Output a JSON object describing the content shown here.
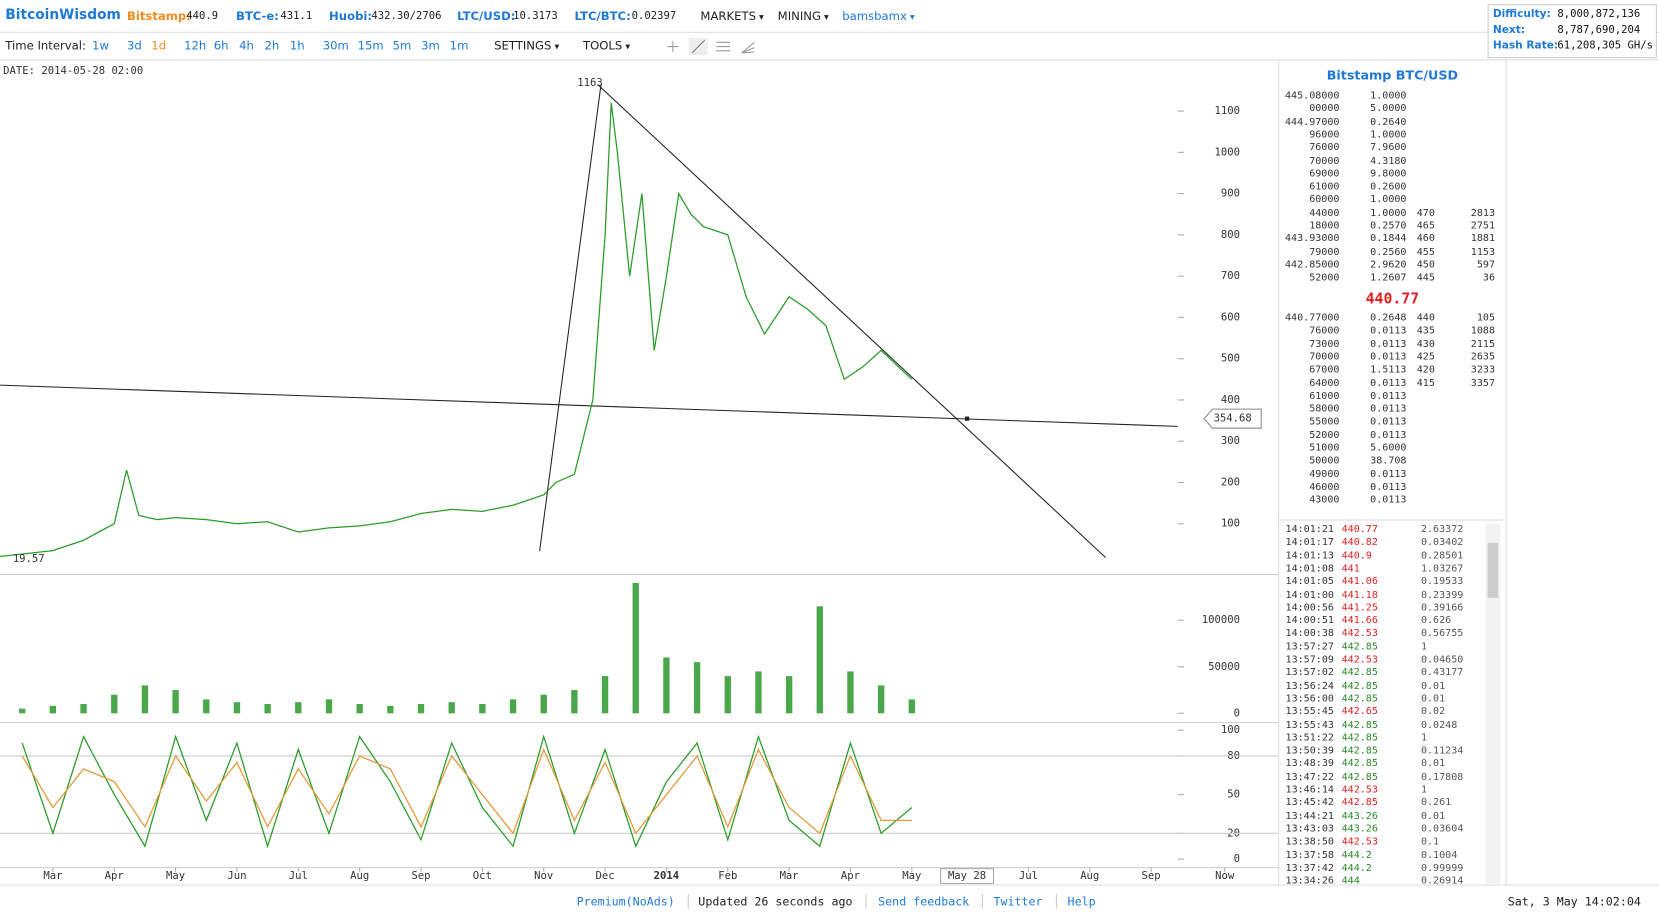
{
  "header": {
    "logo": "BitcoinWisdom",
    "tickers": [
      {
        "label": "Bitstamp:",
        "value": "440.9"
      },
      {
        "label": "BTC-e:",
        "value": "431.1"
      },
      {
        "label": "Huobi:",
        "value": "432.30/2706"
      },
      {
        "label": "LTC/USD:",
        "value": "10.3173"
      },
      {
        "label": "LTC/BTC:",
        "value": "0.02397"
      }
    ],
    "menus": [
      "MARKETS",
      "MINING",
      "bamsbamx"
    ]
  },
  "stats": [
    {
      "label": "Difficulty:",
      "value": "8,000,872,136"
    },
    {
      "label": "Next:",
      "value": "8,787,690,204"
    },
    {
      "label": "Hash Rate:",
      "value": "61,208,305 GH/s"
    }
  ],
  "toolbar": {
    "label": "Time Interval:",
    "intervals": [
      "1w",
      "3d",
      "1d",
      "12h",
      "6h",
      "4h",
      "2h",
      "1h",
      "30m",
      "15m",
      "5m",
      "3m",
      "1m"
    ],
    "selected_index": 2,
    "menus": [
      "SETTINGS",
      "TOOLS"
    ]
  },
  "chart_data": [
    {
      "type": "line",
      "date_label": "DATE: 2014-05-28 02:00",
      "xlim": [
        -0.862,
        19.97
      ],
      "ylim": [
        -23,
        1223
      ],
      "yticks": [
        100,
        200,
        300,
        400,
        500,
        600,
        700,
        800,
        900,
        1000,
        1100
      ],
      "x": [
        -0.9,
        0,
        0.5,
        1,
        1.2,
        1.4,
        1.7,
        2,
        2.5,
        3,
        3.5,
        4,
        4.5,
        5,
        5.5,
        6,
        6.5,
        7,
        7.5,
        8,
        8.2,
        8.5,
        8.8,
        9,
        9.1,
        9.2,
        9.4,
        9.6,
        9.8,
        10,
        10.2,
        10.4,
        10.6,
        11,
        11.3,
        11.6,
        12,
        12.3,
        12.6,
        12.9,
        13.2,
        13.5,
        14
      ],
      "series": [
        {
          "color": "#2a9d2a",
          "values": [
            20,
            35,
            60,
            100,
            230,
            120,
            110,
            115,
            110,
            100,
            105,
            80,
            90,
            95,
            105,
            125,
            135,
            130,
            145,
            170,
            200,
            220,
            400,
            800,
            1120,
            1000,
            700,
            900,
            520,
            700,
            900,
            850,
            820,
            800,
            650,
            560,
            650,
            620,
            580,
            450,
            480,
            520,
            450
          ]
        }
      ],
      "annotations": [
        {
          "label": "1163",
          "x": 9.1,
          "y": 1163
        },
        {
          "label": "19.57",
          "x": -0.86,
          "y": 19.57
        }
      ],
      "cursor": {
        "label": "354.68",
        "x": 14.9,
        "y": 354.68
      }
    },
    {
      "type": "bar",
      "xlim": [
        -0.862,
        19.97
      ],
      "ylim": [
        -10000,
        148000
      ],
      "yticks": [
        0,
        50000,
        100000
      ],
      "color": "#4aa84a",
      "x": [
        -0.5,
        0,
        0.5,
        1,
        1.5,
        2,
        2.5,
        3,
        3.5,
        4,
        4.5,
        5,
        5.5,
        6,
        6.5,
        7,
        7.5,
        8,
        8.5,
        9,
        9.5,
        10,
        10.5,
        11,
        11.5,
        12,
        12.5,
        13,
        13.5,
        14
      ],
      "values": [
        5000,
        8000,
        10000,
        20000,
        30000,
        25000,
        15000,
        12000,
        10000,
        12000,
        15000,
        10000,
        8000,
        10000,
        12000,
        10000,
        15000,
        20000,
        25000,
        40000,
        140000,
        60000,
        55000,
        40000,
        45000,
        40000,
        115000,
        45000,
        30000,
        15000
      ]
    },
    {
      "type": "line",
      "xlim": [
        -0.862,
        19.97
      ],
      "ylim": [
        -6.6,
        105
      ],
      "yticks": [
        0,
        20,
        50,
        80,
        100
      ],
      "gridlines": [
        20,
        80
      ],
      "xticks": [
        {
          "value": 0,
          "label": "Mar"
        },
        {
          "value": 1,
          "label": "Apr"
        },
        {
          "value": 2,
          "label": "May"
        },
        {
          "value": 3,
          "label": "Jun"
        },
        {
          "value": 4,
          "label": "Jul"
        },
        {
          "value": 5,
          "label": "Aug"
        },
        {
          "value": 6,
          "label": "Sep"
        },
        {
          "value": 7,
          "label": "Oct"
        },
        {
          "value": 8,
          "label": "Nov"
        },
        {
          "value": 9,
          "label": "Dec"
        },
        {
          "value": 10,
          "label": "2014"
        },
        {
          "value": 11,
          "label": "Feb"
        },
        {
          "value": 12,
          "label": "Mar"
        },
        {
          "value": 13,
          "label": "Apr"
        },
        {
          "value": 14,
          "label": "May"
        },
        {
          "value": 15.9,
          "label": "Jul"
        },
        {
          "value": 16.9,
          "label": "Aug"
        },
        {
          "value": 17.9,
          "label": "Sep"
        },
        {
          "value": 19.1,
          "label": "Now"
        }
      ],
      "cursor_label": {
        "label": "May 28",
        "x": 14.9
      },
      "x": [
        -0.5,
        0,
        0.5,
        1,
        1.5,
        2,
        2.5,
        3,
        3.5,
        4,
        4.5,
        5,
        5.5,
        6,
        6.5,
        7,
        7.5,
        8,
        8.5,
        9,
        9.5,
        10,
        10.5,
        11,
        11.5,
        12,
        12.5,
        13,
        13.5,
        14
      ],
      "series": [
        {
          "color": "#2a9d2a",
          "values": [
            90,
            20,
            95,
            50,
            10,
            95,
            30,
            90,
            10,
            85,
            20,
            95,
            60,
            15,
            90,
            40,
            10,
            95,
            20,
            85,
            10,
            60,
            90,
            15,
            95,
            30,
            10,
            90,
            20,
            40
          ]
        },
        {
          "color": "#e39a3c",
          "values": [
            80,
            40,
            70,
            60,
            25,
            80,
            45,
            75,
            25,
            70,
            35,
            80,
            70,
            25,
            80,
            50,
            20,
            85,
            30,
            75,
            20,
            50,
            80,
            25,
            85,
            40,
            20,
            80,
            30,
            30
          ]
        }
      ]
    }
  ],
  "order_book": {
    "title": "Bitstamp BTC/USD",
    "asks": [
      [
        "445.08000",
        "1.0000"
      ],
      [
        "00000",
        "5.0000"
      ],
      [
        "444.97000",
        "0.2640"
      ],
      [
        "96000",
        "1.0000"
      ],
      [
        "76000",
        "7.9600"
      ],
      [
        "70000",
        "4.3180"
      ],
      [
        "69000",
        "9.8000"
      ],
      [
        "61000",
        "0.2600"
      ],
      [
        "60000",
        "1.0000"
      ],
      [
        "44000",
        "1.0000",
        "470",
        "2813"
      ],
      [
        "18000",
        "0.2570",
        "465",
        "2751"
      ],
      [
        "443.93000",
        "0.1844",
        "460",
        "1881"
      ],
      [
        "79000",
        "0.2560",
        "455",
        "1153"
      ],
      [
        "442.85000",
        "2.9620",
        "450",
        "597"
      ],
      [
        "52000",
        "1.2607",
        "445",
        "36"
      ]
    ],
    "last": "440.77",
    "bids": [
      [
        "440.77000",
        "0.2648",
        "440",
        "105"
      ],
      [
        "76000",
        "0.0113",
        "435",
        "1088"
      ],
      [
        "73000",
        "0.0113",
        "430",
        "2115"
      ],
      [
        "70000",
        "0.0113",
        "425",
        "2635"
      ],
      [
        "67000",
        "1.5113",
        "420",
        "3233"
      ],
      [
        "64000",
        "0.0113",
        "415",
        "3357"
      ],
      [
        "61000",
        "0.0113"
      ],
      [
        "58000",
        "0.0113"
      ],
      [
        "55000",
        "0.0113"
      ],
      [
        "52000",
        "0.0113"
      ],
      [
        "51000",
        "5.6000"
      ],
      [
        "50000",
        "38.708"
      ],
      [
        "49000",
        "0.0113"
      ],
      [
        "46000",
        "0.0113"
      ],
      [
        "43000",
        "0.0113"
      ]
    ]
  },
  "trades": [
    [
      "14:01:21",
      "440.77",
      "2.63372",
      "#e02020"
    ],
    [
      "14:01:17",
      "440.82",
      "0.03402",
      "#e02020"
    ],
    [
      "14:01:13",
      "440.9",
      "0.28501",
      "#e02020"
    ],
    [
      "14:01:08",
      "441",
      "1.03267",
      "#e02020"
    ],
    [
      "14:01:05",
      "441.06",
      "0.19533",
      "#e02020"
    ],
    [
      "14:01:00",
      "441.18",
      "0.23399",
      "#e02020"
    ],
    [
      "14:00:56",
      "441.25",
      "0.39166",
      "#e02020"
    ],
    [
      "14:00:51",
      "441.66",
      "0.626",
      "#e02020"
    ],
    [
      "14:00:38",
      "442.53",
      "0.56755",
      "#e02020"
    ],
    [
      "13:57:27",
      "442.85",
      "1",
      "#2a8a2a"
    ],
    [
      "13:57:09",
      "442.53",
      "0.04650",
      "#e02020"
    ],
    [
      "13:57:02",
      "442.85",
      "0.43177",
      "#2a8a2a"
    ],
    [
      "13:56:24",
      "442.85",
      "0.01",
      "#2a8a2a"
    ],
    [
      "13:56:00",
      "442.85",
      "0.01",
      "#2a8a2a"
    ],
    [
      "13:55:45",
      "442.65",
      "0.02",
      "#e02020"
    ],
    [
      "13:55:43",
      "442.85",
      "0.0248",
      "#2a8a2a"
    ],
    [
      "13:51:22",
      "442.85",
      "1",
      "#2a8a2a"
    ],
    [
      "13:50:39",
      "442.85",
      "0.11234",
      "#2a8a2a"
    ],
    [
      "13:48:39",
      "442.85",
      "0.01",
      "#2a8a2a"
    ],
    [
      "13:47:22",
      "442.85",
      "0.17808",
      "#2a8a2a"
    ],
    [
      "13:46:14",
      "442.53",
      "1",
      "#e02020"
    ],
    [
      "13:45:42",
      "442.85",
      "0.261",
      "#e02020"
    ],
    [
      "13:44:21",
      "443.26",
      "0.01",
      "#2a8a2a"
    ],
    [
      "13:43:03",
      "443.26",
      "0.03604",
      "#2a8a2a"
    ],
    [
      "13:38:50",
      "442.53",
      "0.1",
      "#e02020"
    ],
    [
      "13:37:58",
      "444.2",
      "0.1004",
      "#2a8a2a"
    ],
    [
      "13:37:42",
      "444.2",
      "0.99999",
      "#2a8a2a"
    ],
    [
      "13:34:26",
      "444",
      "0.26914",
      "#2a8a2a"
    ]
  ],
  "footer": {
    "items": [
      "Premium(NoAds)",
      "Updated 26 seconds ago",
      "Send feedback",
      "Twitter",
      "Help"
    ],
    "clock": "Sat, 3 May 14:02:04"
  }
}
